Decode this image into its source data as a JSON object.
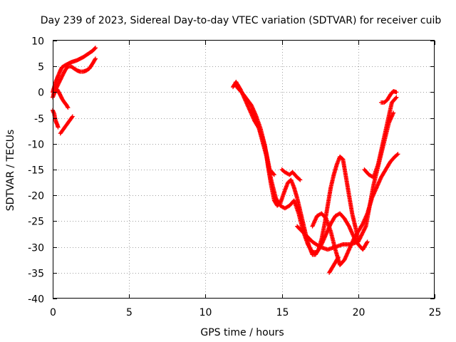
{
  "chart_data": {
    "type": "scatter",
    "title": "Day 239 of 2023, Sidereal Day-to-day VTEC variation (SDTVAR) for receiver cuib",
    "xlabel": "GPS time / hours",
    "ylabel": "SDTVAR / TECUs",
    "xlim": [
      0,
      25
    ],
    "ylim": [
      -40,
      10
    ],
    "xticks": [
      0,
      5,
      10,
      15,
      20,
      25
    ],
    "yticks": [
      -40,
      -35,
      -30,
      -25,
      -20,
      -15,
      -10,
      -5,
      0,
      5,
      10
    ],
    "grid": true,
    "marker": "+",
    "color": "#ff0000",
    "series": [
      {
        "name": "s1",
        "x": [
          0.0,
          0.1,
          0.2,
          0.3,
          0.4,
          0.5,
          0.6,
          0.8,
          1.0,
          1.2,
          1.4,
          1.6,
          1.8,
          2.0,
          2.2,
          2.4,
          2.6,
          2.7,
          2.8
        ],
        "y": [
          0.0,
          1.0,
          2.0,
          2.8,
          3.5,
          4.2,
          4.8,
          5.2,
          5.5,
          5.8,
          6.0,
          6.2,
          6.5,
          6.8,
          7.2,
          7.6,
          8.0,
          8.3,
          8.6
        ]
      },
      {
        "name": "s2",
        "x": [
          0.0,
          0.2,
          0.4,
          0.6,
          0.8,
          1.0,
          1.2,
          1.4,
          1.6,
          1.8,
          2.0,
          2.2,
          2.4,
          2.6,
          2.8
        ],
        "y": [
          -1.0,
          0.5,
          1.8,
          3.0,
          4.2,
          5.0,
          5.0,
          4.6,
          4.2,
          4.0,
          4.0,
          4.2,
          4.6,
          5.5,
          6.5
        ]
      },
      {
        "name": "s3",
        "x": [
          0.05,
          0.1,
          0.2,
          0.3,
          0.4,
          0.5,
          0.6,
          0.7,
          0.8,
          0.9,
          1.0
        ],
        "y": [
          -0.5,
          0.3,
          0.6,
          0.5,
          0.0,
          -0.6,
          -1.2,
          -1.7,
          -2.1,
          -2.5,
          -3.0
        ]
      },
      {
        "name": "s4",
        "x": [
          0.0,
          0.1,
          0.15,
          0.2,
          0.25,
          0.3,
          0.35
        ],
        "y": [
          -3.5,
          -4.2,
          -5.0,
          -5.6,
          -6.0,
          -6.3,
          -6.8
        ]
      },
      {
        "name": "s5",
        "x": [
          0.5,
          1.3
        ],
        "y": [
          -8.0,
          -4.7
        ]
      },
      {
        "name": "s6",
        "x": [
          11.8,
          12.0,
          12.3,
          12.6,
          12.9,
          13.2,
          13.5,
          13.8,
          14.0,
          14.2,
          14.5
        ],
        "y": [
          1.0,
          2.0,
          0.5,
          -1.5,
          -3.5,
          -5.5,
          -7.0,
          -9.5,
          -12.0,
          -15.0,
          -16.0
        ]
      },
      {
        "name": "s7",
        "x": [
          12.0,
          12.5,
          13.0,
          13.3,
          13.6,
          13.9,
          14.1,
          14.3,
          14.5,
          14.7,
          14.9,
          15.2,
          15.4,
          15.6,
          15.8,
          16.0,
          16.2,
          16.4,
          16.6,
          16.8,
          17.0,
          17.2,
          17.4,
          17.6,
          17.8,
          18.0,
          18.2,
          18.4,
          18.6,
          18.8,
          19.0,
          19.2,
          19.4,
          19.6,
          19.8,
          20.0
        ],
        "y": [
          1.2,
          -0.5,
          -2.5,
          -4.5,
          -7.0,
          -10.5,
          -14.5,
          -18.0,
          -21.0,
          -22.0,
          -21.5,
          -19.0,
          -17.5,
          -17.0,
          -18.5,
          -20.5,
          -23.0,
          -25.5,
          -28.0,
          -30.0,
          -31.5,
          -31.5,
          -30.5,
          -28.5,
          -25.5,
          -22.0,
          -18.5,
          -16.0,
          -14.0,
          -12.5,
          -13.0,
          -16.5,
          -20.0,
          -23.5,
          -26.0,
          -28.5
        ]
      },
      {
        "name": "s8",
        "x": [
          13.0,
          13.5,
          14.0,
          14.3,
          14.6,
          14.9,
          15.2,
          15.5,
          15.8,
          16.1,
          16.4,
          16.7,
          17.0,
          17.3,
          17.6,
          17.9,
          18.2,
          18.5,
          18.8,
          19.1,
          19.4,
          19.7,
          20.0,
          20.3,
          20.6
        ],
        "y": [
          -3.5,
          -7.0,
          -12.5,
          -17.0,
          -20.5,
          -22.0,
          -22.5,
          -22.0,
          -21.0,
          -23.5,
          -27.0,
          -29.5,
          -31.0,
          -31.0,
          -29.5,
          -27.5,
          -25.5,
          -24.0,
          -23.5,
          -24.5,
          -26.0,
          -28.0,
          -29.5,
          -30.5,
          -29.0
        ]
      },
      {
        "name": "s9",
        "x": [
          16.0,
          16.5,
          17.0,
          17.5,
          18.0,
          18.5,
          19.0,
          19.5,
          20.0,
          20.5,
          21.0,
          21.5,
          22.0,
          22.3
        ],
        "y": [
          -26.0,
          -27.5,
          -29.0,
          -30.0,
          -30.5,
          -30.0,
          -29.5,
          -29.5,
          -29.0,
          -26.0,
          -18.0,
          -12.0,
          -6.0,
          -4.0
        ]
      },
      {
        "name": "s10",
        "x": [
          17.0,
          17.3,
          17.6,
          17.9,
          18.2,
          18.5,
          18.8,
          19.1,
          19.4,
          19.7,
          20.0,
          20.3,
          20.6,
          20.9,
          21.2,
          21.5,
          21.8,
          22.1,
          22.4,
          22.6
        ],
        "y": [
          -26.0,
          -24.0,
          -23.5,
          -24.5,
          -27.0,
          -30.5,
          -33.5,
          -32.5,
          -30.5,
          -28.5,
          -27.0,
          -25.5,
          -23.5,
          -20.5,
          -18.5,
          -16.5,
          -15.0,
          -13.5,
          -12.5,
          -12.0
        ]
      },
      {
        "name": "s11",
        "x": [
          18.1,
          18.3,
          18.5,
          18.7
        ],
        "y": [
          -35.0,
          -34.0,
          -33.0,
          -32.0
        ]
      },
      {
        "name": "s12",
        "x": [
          20.4,
          20.7,
          21.0,
          21.3,
          21.6,
          21.9,
          22.2,
          22.5
        ],
        "y": [
          -15.0,
          -16.0,
          -16.5,
          -14.0,
          -10.0,
          -6.0,
          -2.0,
          -1.0
        ]
      },
      {
        "name": "s13",
        "x": [
          21.5,
          21.7,
          21.9,
          22.1,
          22.3,
          22.5
        ],
        "y": [
          -2.0,
          -2.0,
          -1.5,
          -0.5,
          0.2,
          0.0
        ]
      },
      {
        "name": "s14",
        "x": [
          15.0,
          15.2,
          15.5,
          15.7,
          16.0,
          16.2
        ],
        "y": [
          -15.0,
          -15.5,
          -16.0,
          -15.5,
          -16.5,
          -17.0
        ]
      }
    ]
  }
}
